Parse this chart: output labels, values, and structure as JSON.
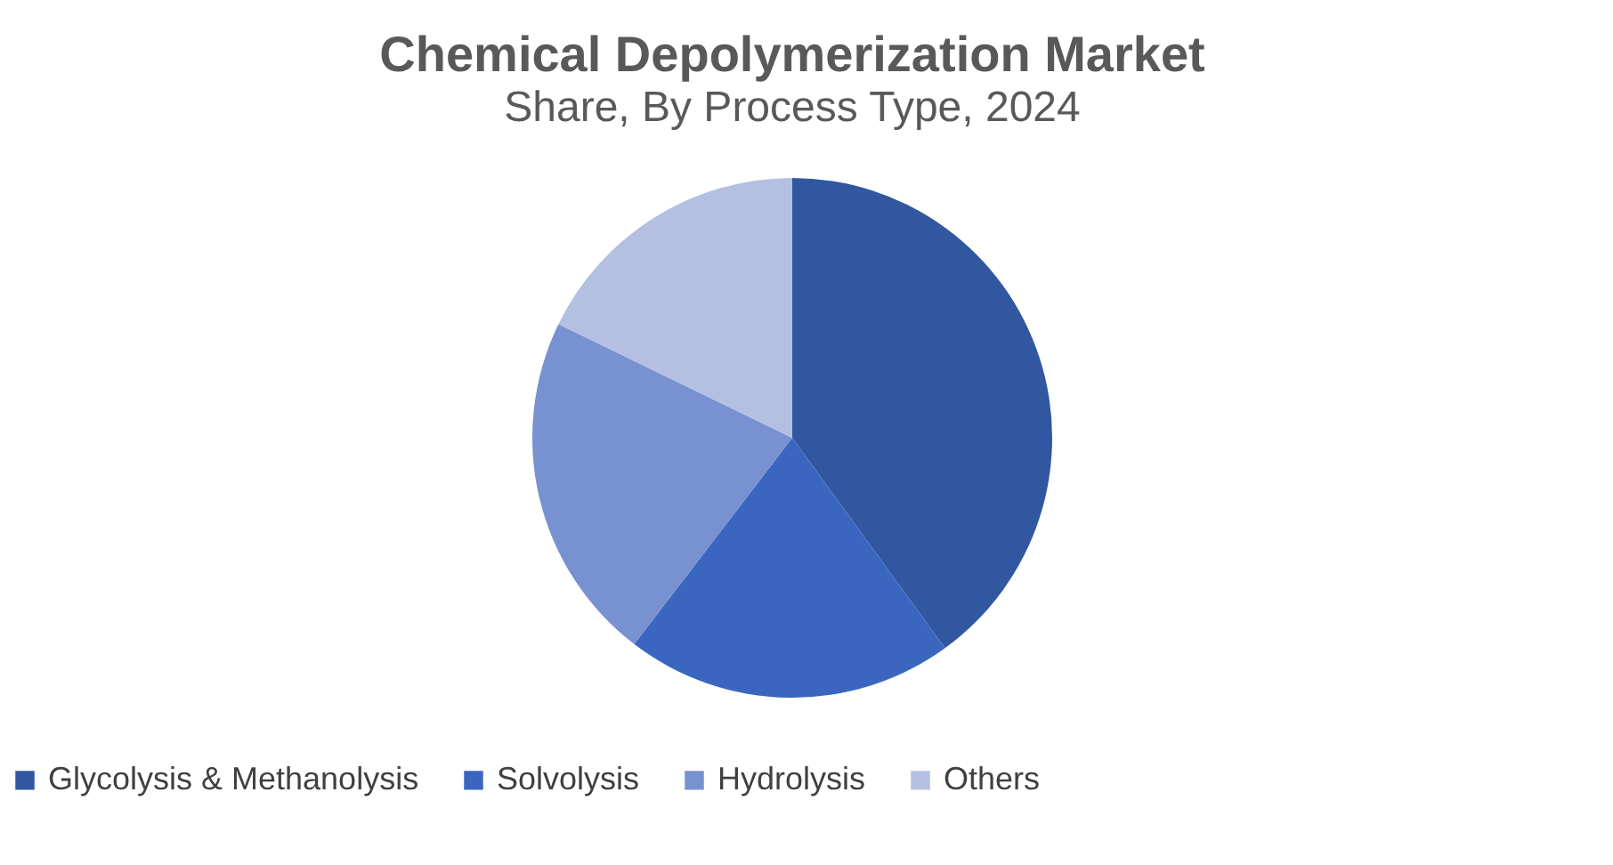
{
  "chart_data": {
    "type": "pie",
    "title": "Chemical Depolymerization Market",
    "subtitle": "Share, By Process Type, 2024",
    "categories": [
      "Glycolysis & Methanolysis",
      "Solvolysis",
      "Hydrolysis",
      "Others"
    ],
    "values": [
      40,
      20.4,
      21.8,
      17.8
    ],
    "colors": [
      "#3057a0",
      "#3a66c0",
      "#7891d0",
      "#b4c0e2"
    ],
    "legend": "bottom"
  }
}
